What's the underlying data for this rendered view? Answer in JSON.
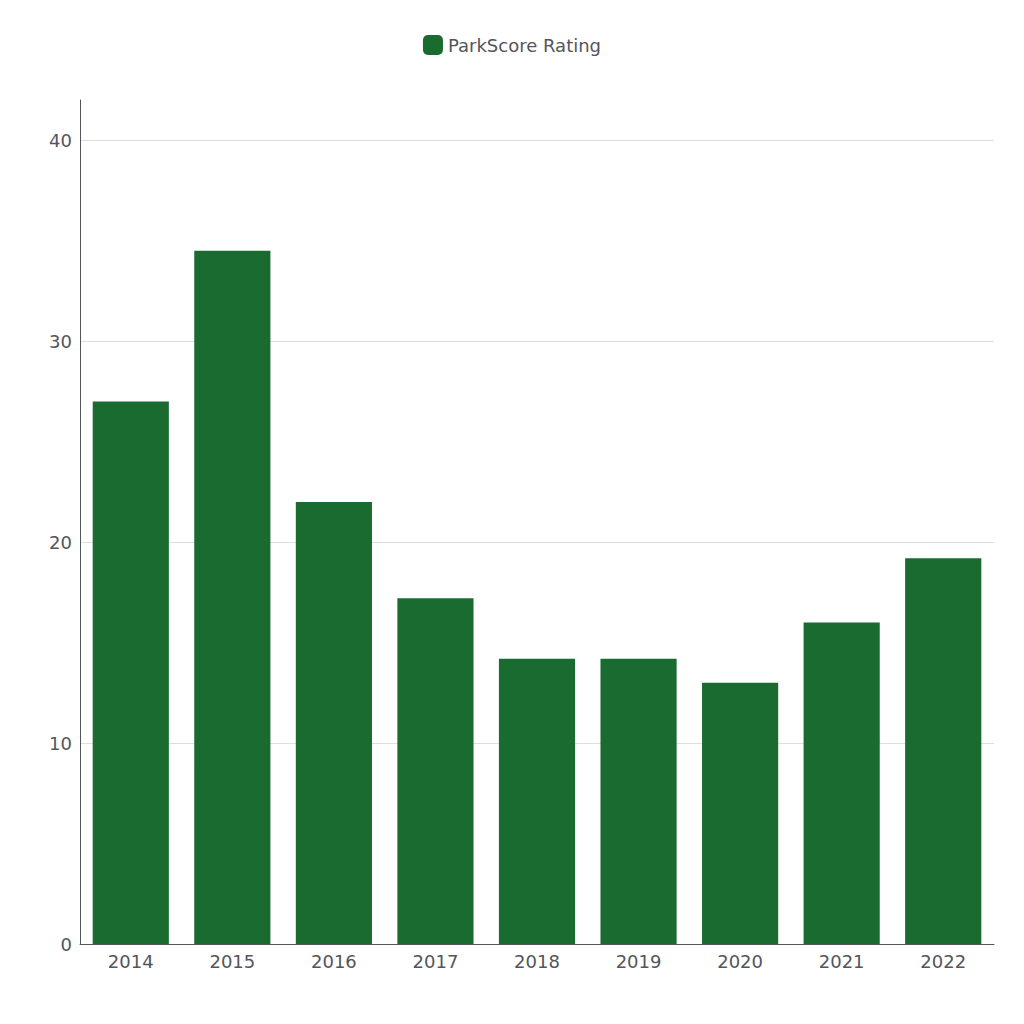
{
  "chart_data": {
    "type": "bar",
    "categories": [
      "2014",
      "2015",
      "2016",
      "2017",
      "2018",
      "2019",
      "2020",
      "2021",
      "2022"
    ],
    "series": [
      {
        "name": "ParkScore Rating",
        "color": "#1a6b30",
        "values": [
          27.0,
          34.5,
          22.0,
          17.2,
          14.2,
          14.2,
          13.0,
          16.0,
          19.2
        ]
      }
    ],
    "ylim": [
      0,
      42
    ],
    "yticks": [
      0,
      10,
      20,
      30,
      40
    ],
    "grid": true,
    "legend": "top"
  }
}
